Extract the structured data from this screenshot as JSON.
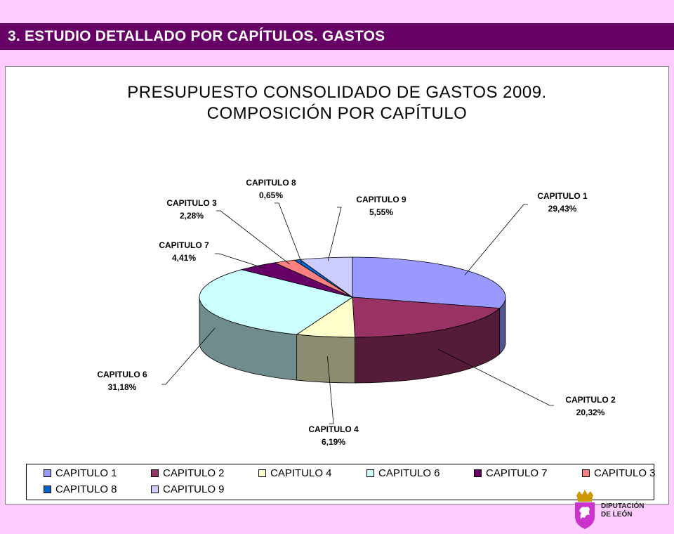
{
  "header": {
    "title": "3. ESTUDIO DETALLADO POR CAPÍTULOS. GASTOS"
  },
  "colors": {
    "header_bg": "#660066",
    "page_bg": "#ffccff"
  },
  "logo": {
    "icon": "coat-of-arms-lion-icon",
    "line1": "DIPUTACIÓN",
    "line2": "DE LEÓN"
  },
  "chart_data": {
    "type": "pie",
    "title_lines": [
      "PRESUPUESTO CONSOLIDADO DE GASTOS 2009.",
      "COMPOSICIÓN POR CAPÍTULO"
    ],
    "slices": [
      {
        "name": "CAPITULO 1",
        "label": "CAPITULO 1",
        "pct_label": "29,43%",
        "value": 29.43,
        "color": "#9999ff"
      },
      {
        "name": "CAPITULO 2",
        "label": "CAPITULO 2",
        "pct_label": "20,32%",
        "value": 20.32,
        "color": "#993366"
      },
      {
        "name": "CAPITULO 4",
        "label": "CAPITULO 4",
        "pct_label": "6,19%",
        "value": 6.19,
        "color": "#ffffcc"
      },
      {
        "name": "CAPITULO 6",
        "label": "CAPITULO 6",
        "pct_label": "31,18%",
        "value": 31.18,
        "color": "#ccffff"
      },
      {
        "name": "CAPITULO 7",
        "label": "CAPITULO 7",
        "pct_label": "4,41%",
        "value": 4.41,
        "color": "#660066"
      },
      {
        "name": "CAPITULO 3",
        "label": "CAPITULO 3",
        "pct_label": "2,28%",
        "value": 2.28,
        "color": "#ff8080"
      },
      {
        "name": "CAPITULO 8",
        "label": "CAPITULO 8",
        "pct_label": "0,65%",
        "value": 0.65,
        "color": "#0066cc"
      },
      {
        "name": "CAPITULO 9",
        "label": "CAPITULO 9",
        "pct_label": "5,55%",
        "value": 5.55,
        "color": "#ccccff"
      }
    ],
    "legend": {
      "placement": "bottom",
      "rows": [
        [
          "CAPITULO 1",
          "CAPITULO 2",
          "CAPITULO 4",
          "CAPITULO 6",
          "CAPITULO 7",
          "CAPITULO 3"
        ],
        [
          "CAPITULO 8",
          "CAPITULO 9"
        ]
      ]
    },
    "style": "3d-pie"
  }
}
